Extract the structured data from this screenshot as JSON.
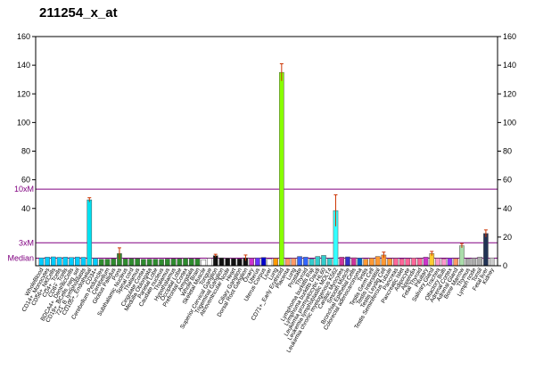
{
  "chart_data": {
    "type": "bar",
    "title": "211254_x_at",
    "ylim": [
      0,
      160
    ],
    "yticks": [
      0,
      20,
      40,
      60,
      80,
      100,
      120,
      140,
      160
    ],
    "left_axis_ticks": [
      {
        "value": 40,
        "label": "40"
      },
      {
        "value": 60,
        "label": "60"
      },
      {
        "value": 80,
        "label": "80"
      },
      {
        "value": 100,
        "label": "100"
      },
      {
        "value": 120,
        "label": "120"
      },
      {
        "value": 140,
        "label": "140"
      },
      {
        "value": 160,
        "label": "160"
      }
    ],
    "right_axis_ticks": [
      {
        "value": 0,
        "label": "0"
      },
      {
        "value": 20,
        "label": "20"
      },
      {
        "value": 40,
        "label": "40"
      },
      {
        "value": 60,
        "label": "60"
      },
      {
        "value": 80,
        "label": "80"
      },
      {
        "value": 100,
        "label": "100"
      },
      {
        "value": 120,
        "label": "120"
      },
      {
        "value": 140,
        "label": "140"
      },
      {
        "value": 160,
        "label": "160"
      }
    ],
    "reference_lines": [
      {
        "label": "10xM",
        "value": 53.5,
        "color": "#800080"
      },
      {
        "label": "3xM",
        "value": 16,
        "color": "#800080"
      },
      {
        "label": "Median",
        "value": 5.3,
        "color": "#800080"
      }
    ],
    "categories": [
      "WholeBlood",
      "CD14+_Monocytes",
      "CD56+_NKCells",
      "CD4+_Tcells",
      "CD8+_Tcells",
      "BDCA4+_DentriticCells",
      "CD19+_BCells_neg_sel",
      "721_B_lymphoblasts",
      "CD105+_Endothelial",
      "CD34+",
      "Cerebellum Peduncles",
      "Cerebellum",
      "Globus Pallidus",
      "Pons",
      "Subthalamic Nucleus",
      "Spinal cord",
      "Thalamus",
      "Cingulate Cortex",
      "Medulla Oblongata",
      "Parietal Lobe",
      "Caudate nucleus",
      "Thalamus",
      "Hypothalamus",
      "Occipital Lobe",
      "Prefrontal Cortex",
      "Amygdala",
      "Whole Brain",
      "Skeletal Muscle",
      "Tongue",
      "Superior Cervical Ganglion",
      "Trigeminal Ganglion",
      "Atrioventricular Node",
      "Heart",
      "Ciliary Ganglion",
      "Dorsal Root Ganglion",
      "Ovary",
      "Uterus",
      "Uterus Corpus",
      "Liver",
      "Lung",
      "CD71+_Early Erythroid",
      "Placenta",
      "Lung",
      "Prostate",
      "Thyroid",
      "Lymphoma burkitts Raji",
      "Lymphoma burkitts Daudi",
      "Leukemia promyelocytic HL60",
      "Leukemia lymphoblastic MOLT4",
      "Leukemia chronic myelogenous K562",
      "Cardiac Myocytes",
      "Smooth Muscle",
      "Bronchial Epithelial Cells",
      "Colorectal adenocarcinoma",
      "Testis",
      "Testis Germ Cell",
      "Testis Interstitial",
      "Testis Leydig Cell",
      "Testis Seminiferous Tubule",
      "Pancreas",
      "Pancreatic Islet",
      "Adipocyte",
      "Appendix",
      "Fetal Thyroid",
      "Pituitary",
      "Salivary Gland",
      "Trachea",
      "Olfactory Bulb",
      "Adrenal Cortex",
      "Adrenal Gland",
      "Bone Marrow",
      "Thymus",
      "Lymph node",
      "Tonsil",
      "Fetal liver",
      "Kidney"
    ],
    "values": [
      5.5,
      6,
      6.2,
      5.9,
      6,
      5.8,
      6.1,
      5.9,
      46,
      5.2,
      4.5,
      4.6,
      4.8,
      8.5,
      4.8,
      5,
      5,
      4.5,
      4.6,
      4.6,
      4.5,
      4.7,
      4.8,
      4.9,
      5.2,
      4.9,
      4.8,
      4.2,
      5.2,
      7,
      5.5,
      5.3,
      5,
      4.8,
      5.5,
      5.2,
      5.5,
      5.8,
      4.8,
      5.2,
      135,
      5,
      5.2,
      6.5,
      6,
      4.8,
      6.5,
      7.2,
      5.2,
      38.5,
      6,
      6.2,
      5.6,
      5.4,
      4.6,
      5.3,
      6.5,
      7.5,
      5,
      5.2,
      4.8,
      5,
      5.4,
      5.1,
      6,
      8.5,
      5.2,
      4.8,
      5.2,
      5,
      14,
      5,
      5.3,
      6,
      22.5,
      5.5
    ],
    "errors": [
      0.5,
      0.5,
      0.5,
      0.5,
      0.5,
      0.5,
      0.5,
      0.5,
      1.5,
      0.5,
      0.5,
      0.5,
      0.5,
      4,
      0.5,
      0.5,
      0.5,
      0.5,
      0.5,
      0.5,
      0.5,
      0.5,
      0.5,
      0.5,
      0.5,
      0.5,
      0.5,
      0.5,
      0.5,
      1,
      0.5,
      0.5,
      0.5,
      0.5,
      2,
      0.5,
      0.5,
      0.5,
      0.5,
      0.5,
      6,
      0.5,
      0.5,
      0.5,
      0.5,
      0.5,
      0.5,
      0.5,
      0.5,
      11,
      0.5,
      0.5,
      0.5,
      0.5,
      0.5,
      0.5,
      0.5,
      2,
      0.5,
      0.5,
      0.5,
      0.5,
      0.5,
      0.5,
      0.5,
      1.5,
      0.5,
      0.5,
      0.5,
      0.5,
      1.5,
      0.5,
      0.5,
      0.5,
      2.5,
      0.5
    ],
    "colors": [
      "#00ccff",
      "#00ccff",
      "#00ccff",
      "#00ccff",
      "#00ccff",
      "#00ccff",
      "#00ccff",
      "#00ccff",
      "#00e0f0",
      "#00ccff",
      "#2e8b2e",
      "#2e8b2e",
      "#2e8b2e",
      "#2e8b2e",
      "#2e8b2e",
      "#2e8b2e",
      "#2e8b2e",
      "#2e8b2e",
      "#2e8b2e",
      "#2e8b2e",
      "#2e8b2e",
      "#2e8b2e",
      "#2e8b2e",
      "#2e8b2e",
      "#2e8b2e",
      "#2e8b2e",
      "#2e8b2e",
      "#ffffff",
      "#ffffff",
      "#111111",
      "#111111",
      "#111111",
      "#111111",
      "#111111",
      "#111111",
      "#cc33cc",
      "#6633ff",
      "#0000cc",
      "#ffffff",
      "#ff9900",
      "#88ff00",
      "#ff9966",
      "#ff9966",
      "#3366ff",
      "#3366ff",
      "#33cccc",
      "#33cccc",
      "#33cccc",
      "#33cccc",
      "#33ffff",
      "#cc3399",
      "#3333cc",
      "#cc3399",
      "#0066cc",
      "#ff9933",
      "#ff9933",
      "#ff9933",
      "#ff9933",
      "#ff9933",
      "#ff6699",
      "#ff6699",
      "#ff6699",
      "#ff6699",
      "#ff6699",
      "#cc33cc",
      "#ffcc33",
      "#ff99cc",
      "#ff99cc",
      "#9933ff",
      "#ff9966",
      "#aaddaa",
      "#aaaaaa",
      "#aaaaaa",
      "#aaaaaa",
      "#223355",
      "#cccccc"
    ]
  }
}
